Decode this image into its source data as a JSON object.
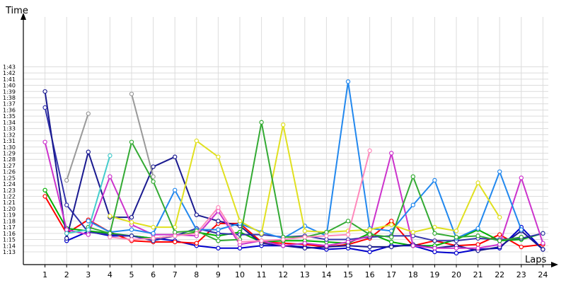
{
  "chart_data": {
    "type": "line",
    "title": "",
    "ylabel": "Time",
    "xlabel": "Laps",
    "x": [
      1,
      2,
      3,
      4,
      5,
      6,
      7,
      8,
      9,
      10,
      11,
      12,
      13,
      14,
      15,
      16,
      17,
      18,
      19,
      20,
      21,
      22,
      23,
      24
    ],
    "xlim": [
      0,
      24
    ],
    "ylim": [
      72,
      105
    ],
    "grid": true,
    "yticks": [
      {
        "v": 73,
        "label": "1:13"
      },
      {
        "v": 74,
        "label": "1:14"
      },
      {
        "v": 75,
        "label": "1:15"
      },
      {
        "v": 76,
        "label": "1:16"
      },
      {
        "v": 77,
        "label": "1:17"
      },
      {
        "v": 78,
        "label": "1:18"
      },
      {
        "v": 79,
        "label": "1:19"
      },
      {
        "v": 80,
        "label": "1:20"
      },
      {
        "v": 81,
        "label": "1:21"
      },
      {
        "v": 82,
        "label": "1:22"
      },
      {
        "v": 83,
        "label": "1:23"
      },
      {
        "v": 84,
        "label": "1:24"
      },
      {
        "v": 85,
        "label": "1:25"
      },
      {
        "v": 86,
        "label": "1:26"
      },
      {
        "v": 87,
        "label": "1:27"
      },
      {
        "v": 88,
        "label": "1:28"
      },
      {
        "v": 89,
        "label": "1:29"
      },
      {
        "v": 90,
        "label": "1:30"
      },
      {
        "v": 91,
        "label": "1:31"
      },
      {
        "v": 92,
        "label": "1:32"
      },
      {
        "v": 93,
        "label": "1:33"
      },
      {
        "v": 94,
        "label": "1:34"
      },
      {
        "v": 95,
        "label": "1:35"
      },
      {
        "v": 96,
        "label": "1:36"
      },
      {
        "v": 97,
        "label": "1:37"
      },
      {
        "v": 98,
        "label": "1:38"
      },
      {
        "v": 99,
        "label": "1:39"
      },
      {
        "v": 100,
        "label": "1:40"
      },
      {
        "v": 101,
        "label": "1:41"
      },
      {
        "v": 102,
        "label": "1:42"
      },
      {
        "v": 103,
        "label": "1:43"
      }
    ],
    "series": [
      {
        "color": "#0000cc",
        "values": [
          null,
          74.8,
          76.3,
          75.6,
          75.6,
          75.2,
          74.8,
          74.0,
          73.6,
          73.6,
          74.0,
          74.0,
          73.8,
          73.4,
          73.6,
          73.0,
          74.0,
          74.0,
          73.0,
          72.8,
          73.4,
          73.6,
          77.0,
          73.4
        ]
      },
      {
        "color": "#ff0000",
        "values": [
          82.0,
          76.0,
          78.2,
          76.2,
          74.8,
          74.6,
          74.6,
          74.4,
          77.6,
          77.6,
          74.6,
          74.4,
          74.2,
          73.8,
          74.2,
          75.2,
          78.0,
          74.0,
          74.8,
          74.0,
          74.2,
          75.8,
          73.8,
          74.2
        ]
      },
      {
        "color": "#00b000",
        "values": [
          83.0,
          76.8,
          76.4,
          76.0,
          75.6,
          75.2,
          75.6,
          76.2,
          75.6,
          76.2,
          74.6,
          74.8,
          74.8,
          74.6,
          74.4,
          76.0,
          74.6,
          74.0,
          74.0,
          75.0,
          76.6,
          74.8,
          75.0,
          76.0
        ]
      },
      {
        "color": "#3333aa",
        "values": [
          96.4,
          80.6,
          76.2,
          75.8,
          75.6,
          74.8,
          75.6,
          76.8,
          76.0,
          75.8,
          75.8,
          75.4,
          75.6,
          75.0,
          75.0,
          75.4,
          75.6,
          75.6,
          74.8,
          74.8,
          75.2,
          75.0,
          75.2,
          76.0
        ]
      },
      {
        "color": "#1a1a90",
        "values": [
          99.0,
          75.2,
          89.2,
          78.6,
          78.6,
          86.8,
          88.4,
          79.0,
          78.0,
          77.2,
          74.4,
          74.0,
          73.6,
          73.8,
          74.0,
          73.8,
          73.8,
          74.2,
          73.6,
          74.0,
          73.2,
          73.8,
          76.4,
          73.4
        ]
      },
      {
        "color": "#cc33cc",
        "values": [
          90.8,
          76.6,
          75.8,
          85.2,
          77.4,
          75.8,
          75.8,
          75.6,
          79.6,
          74.2,
          74.8,
          74.0,
          74.4,
          74.0,
          74.6,
          75.6,
          89.0,
          74.0,
          73.6,
          73.6,
          73.6,
          74.2,
          85.0,
          74.4
        ]
      },
      {
        "color": "#2288ee",
        "values": [
          null,
          null,
          78.0,
          76.2,
          76.6,
          76.0,
          83.0,
          76.6,
          76.6,
          77.6,
          76.2,
          75.2,
          77.2,
          75.6,
          100.6,
          76.8,
          76.4,
          80.6,
          84.6,
          75.2,
          76.8,
          86.0,
          76.6,
          null
        ]
      },
      {
        "color": "#e0e020",
        "values": [
          null,
          null,
          null,
          78.8,
          77.8,
          77.0,
          77.0,
          91.0,
          88.4,
          78.0,
          76.0,
          93.6,
          76.4,
          76.2,
          76.4,
          76.6,
          77.4,
          76.2,
          77.0,
          76.4,
          84.2,
          78.6,
          null,
          null
        ]
      },
      {
        "color": "#33aa33",
        "values": [
          null,
          null,
          77.0,
          76.0,
          90.8,
          84.4,
          76.2,
          76.4,
          74.8,
          75.0,
          94.0,
          75.4,
          75.4,
          76.2,
          78.0,
          75.8,
          75.4,
          85.2,
          76.0,
          75.4,
          75.6,
          74.8,
          75.4,
          null
        ]
      },
      {
        "color": "#ff88bb",
        "values": [
          null,
          null,
          null,
          75.4,
          75.0,
          75.2,
          75.6,
          76.0,
          80.2,
          74.6,
          74.8,
          75.0,
          75.4,
          75.6,
          75.8,
          89.4,
          null,
          null,
          null,
          null,
          null,
          null,
          null,
          null
        ]
      },
      {
        "color": "#999999",
        "values": [
          null,
          84.6,
          95.4,
          null,
          98.6,
          85.2,
          null,
          null,
          null,
          null,
          null,
          null,
          null,
          null,
          null,
          null,
          null,
          null,
          null,
          null,
          null,
          null,
          null,
          null
        ]
      },
      {
        "color": "#44cccc",
        "values": [
          null,
          76.0,
          76.6,
          88.6,
          null,
          null,
          null,
          null,
          null,
          null,
          null,
          null,
          null,
          null,
          null,
          null,
          null,
          null,
          null,
          null,
          null,
          null,
          null,
          null
        ]
      }
    ]
  }
}
